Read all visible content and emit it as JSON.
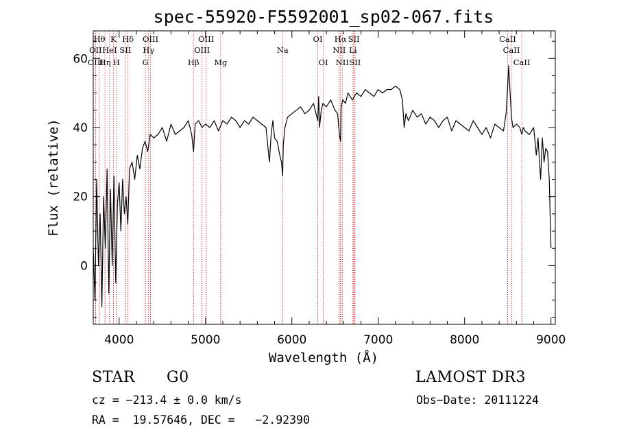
{
  "chart_data": {
    "type": "line",
    "title": "spec-55920-F5592001_sp02-067.fits",
    "xlabel": "Wavelength (Å)",
    "ylabel": "Flux (relative)",
    "xlim": [
      3700,
      9050
    ],
    "ylim": [
      -17,
      68
    ],
    "xticks": [
      4000,
      5000,
      6000,
      7000,
      8000,
      9000
    ],
    "yticks": [
      0,
      20,
      40,
      60
    ],
    "series": [
      {
        "name": "flux",
        "x": [
          3700,
          3720,
          3740,
          3760,
          3780,
          3800,
          3820,
          3840,
          3860,
          3880,
          3900,
          3920,
          3940,
          3960,
          3980,
          4000,
          4020,
          4040,
          4060,
          4080,
          4100,
          4120,
          4150,
          4180,
          4210,
          4240,
          4270,
          4300,
          4330,
          4360,
          4400,
          4450,
          4500,
          4550,
          4600,
          4650,
          4700,
          4750,
          4800,
          4840,
          4861,
          4880,
          4920,
          4960,
          5000,
          5050,
          5100,
          5150,
          5200,
          5250,
          5300,
          5350,
          5400,
          5450,
          5500,
          5550,
          5600,
          5650,
          5700,
          5720,
          5740,
          5760,
          5780,
          5800,
          5830,
          5860,
          5880,
          5893,
          5900,
          5920,
          5950,
          6000,
          6050,
          6100,
          6150,
          6200,
          6250,
          6280,
          6300,
          6310,
          6320,
          6340,
          6360,
          6400,
          6450,
          6500,
          6530,
          6550,
          6563,
          6570,
          6590,
          6620,
          6650,
          6700,
          6750,
          6800,
          6850,
          6900,
          6950,
          7000,
          7050,
          7100,
          7150,
          7200,
          7250,
          7280,
          7300,
          7320,
          7350,
          7400,
          7450,
          7500,
          7550,
          7600,
          7650,
          7700,
          7750,
          7800,
          7850,
          7900,
          7950,
          8000,
          8050,
          8100,
          8150,
          8200,
          8250,
          8300,
          8350,
          8400,
          8450,
          8480,
          8498,
          8510,
          8542,
          8560,
          8600,
          8640,
          8662,
          8680,
          8700,
          8750,
          8800,
          8830,
          8850,
          8880,
          8900,
          8920,
          8940,
          8960,
          8980,
          8990,
          9000
        ],
        "y": [
          5,
          -10,
          25,
          0,
          15,
          -12,
          20,
          5,
          28,
          -8,
          22,
          0,
          26,
          -5,
          18,
          24,
          10,
          25,
          15,
          20,
          12,
          28,
          30,
          25,
          32,
          28,
          34,
          36,
          33,
          38,
          37,
          38,
          40,
          36,
          41,
          38,
          39,
          40,
          42,
          38,
          33,
          41,
          42,
          40,
          41,
          40,
          42,
          39,
          42,
          41,
          43,
          42,
          40,
          42,
          41,
          43,
          42,
          41,
          40,
          35,
          30,
          38,
          42,
          37,
          36,
          32,
          30,
          26,
          35,
          40,
          43,
          44,
          45,
          46,
          44,
          45,
          47,
          44,
          42,
          49,
          40,
          45,
          47,
          46,
          48,
          45,
          44,
          38,
          36,
          46,
          48,
          47,
          50,
          48,
          50,
          49,
          51,
          50,
          49,
          51,
          50,
          51,
          51,
          52,
          51,
          48,
          40,
          44,
          42,
          45,
          43,
          44,
          41,
          43,
          42,
          40,
          42,
          43,
          39,
          42,
          41,
          40,
          39,
          42,
          40,
          38,
          40,
          37,
          41,
          40,
          39,
          44,
          52,
          58,
          43,
          40,
          41,
          40,
          38,
          40,
          39,
          38,
          40,
          32,
          37,
          25,
          37,
          30,
          34,
          33,
          25,
          15,
          5
        ]
      }
    ],
    "line_markers": [
      {
        "label": "OII",
        "wavelength": 3727,
        "row": 2
      },
      {
        "label": "OIII",
        "wavelength": 3727,
        "row": 3
      },
      {
        "label": "Hθ",
        "wavelength": 3771,
        "row": 1
      },
      {
        "label": "Hη",
        "wavelength": 3836,
        "row": 3
      },
      {
        "label": "HeI",
        "wavelength": 3889,
        "row": 2
      },
      {
        "label": "K",
        "wavelength": 3934,
        "row": 1
      },
      {
        "label": "H",
        "wavelength": 3969,
        "row": 3
      },
      {
        "label": "SII",
        "wavelength": 4072,
        "row": 2
      },
      {
        "label": "Hδ",
        "wavelength": 4102,
        "row": 1
      },
      {
        "label": "G",
        "wavelength": 4305,
        "row": 3
      },
      {
        "label": "Hγ",
        "wavelength": 4341,
        "row": 2
      },
      {
        "label": "OIII",
        "wavelength": 4363,
        "row": 1
      },
      {
        "label": "Hβ",
        "wavelength": 4861,
        "row": 3
      },
      {
        "label": "OIII",
        "wavelength": 4959,
        "row": 2
      },
      {
        "label": "OIII",
        "wavelength": 5007,
        "row": 1
      },
      {
        "label": "Mg",
        "wavelength": 5175,
        "row": 3
      },
      {
        "label": "Na",
        "wavelength": 5893,
        "row": 2
      },
      {
        "label": "OI",
        "wavelength": 6300,
        "row": 1
      },
      {
        "label": "OI",
        "wavelength": 6364,
        "row": 3
      },
      {
        "label": "NII",
        "wavelength": 6548,
        "row": 2
      },
      {
        "label": "Hα",
        "wavelength": 6563,
        "row": 1
      },
      {
        "label": "NII",
        "wavelength": 6583,
        "row": 3
      },
      {
        "label": "Li",
        "wavelength": 6708,
        "row": 2
      },
      {
        "label": "SII",
        "wavelength": 6717,
        "row": 1
      },
      {
        "label": "SII",
        "wavelength": 6731,
        "row": 3
      },
      {
        "label": "CaII",
        "wavelength": 8498,
        "row": 1
      },
      {
        "label": "CaII",
        "wavelength": 8542,
        "row": 2
      },
      {
        "label": "CaII",
        "wavelength": 8662,
        "row": 3
      }
    ],
    "colors": {
      "spectrum": "#000000",
      "marker_line": "#c00000"
    }
  },
  "info": {
    "class": "STAR",
    "subclass": "G0",
    "survey": "LAMOST DR3",
    "cz_line": "cz = −213.4 ± 0.0 km/s",
    "obs_date": "Obs−Date: 20111224",
    "coords": "RA =  19.57646, DEC =   −2.92390"
  }
}
